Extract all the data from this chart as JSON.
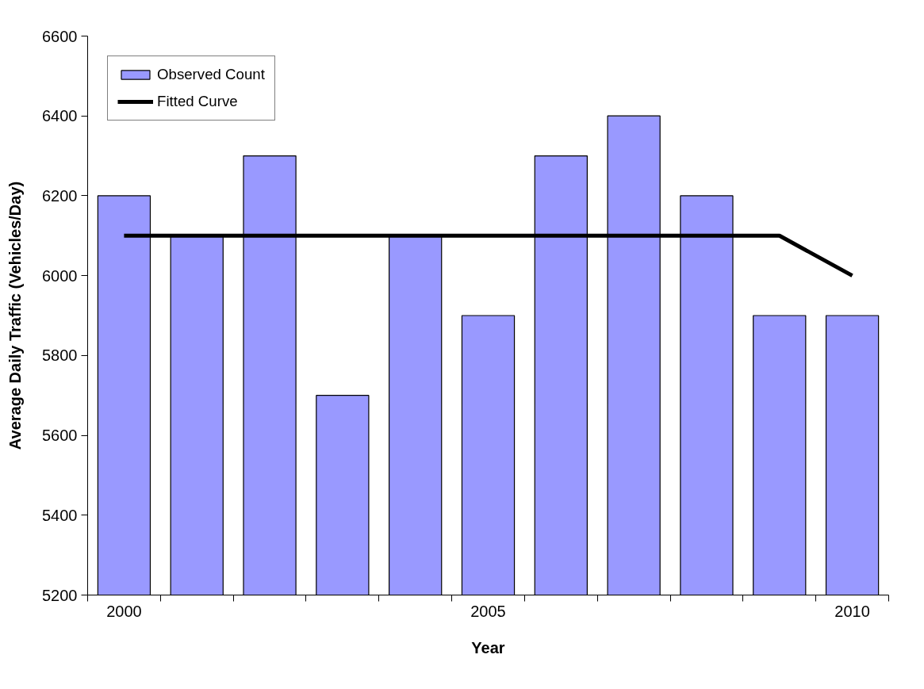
{
  "chart_data": {
    "type": "bar",
    "xlabel": "Year",
    "ylabel": "Average Daily Traffic (Vehicles/Day)",
    "categories": [
      "2000",
      null,
      null,
      null,
      null,
      "2005",
      null,
      null,
      null,
      null,
      "2010"
    ],
    "series": [
      {
        "name": "Observed Count",
        "color": "#9999ff",
        "values": [
          6200,
          6100,
          6300,
          5700,
          6100,
          5900,
          6300,
          6400,
          6200,
          5900,
          5900
        ]
      },
      {
        "name": "Fitted Curve",
        "type": "line",
        "color": "#000000",
        "values": [
          6100,
          6100,
          6100,
          6100,
          6100,
          6100,
          6100,
          6100,
          6100,
          6100,
          6000
        ]
      }
    ],
    "ylim": [
      5200,
      6600
    ],
    "yticks": [
      5200,
      5400,
      5600,
      5800,
      6000,
      6200,
      6400,
      6600
    ],
    "grid": false,
    "legend": "top left",
    "marker": "none"
  }
}
